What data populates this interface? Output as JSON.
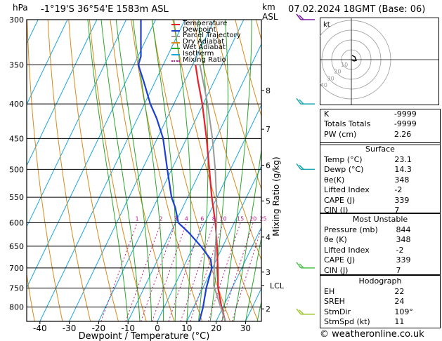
{
  "header": {
    "hpa_label": "hPa",
    "location": "-1°19'S  36°54'E  1583m  ASL",
    "km_label": "km",
    "asl_label": "ASL",
    "datetime": "07.02.2024  18GMT  (Base: 06)"
  },
  "legend": [
    {
      "label": "Temperature",
      "color": "#e8202a"
    },
    {
      "label": "Dewpoint",
      "color": "#1e3fcf"
    },
    {
      "label": "Parcel Trajectory",
      "color": "#9a9a9a"
    },
    {
      "label": "Dry Adiabat",
      "color": "#d98a1a"
    },
    {
      "label": "Wet Adiabat",
      "color": "#2aa82a"
    },
    {
      "label": "Isotherm",
      "color": "#1aa6e0"
    },
    {
      "label": "Mixing Ratio",
      "color": "#c0188a"
    }
  ],
  "chart_data": {
    "type": "line",
    "title": "",
    "xlabel": "Dewpoint / Temperature (°C)",
    "ylabel": "hPa",
    "y2label": "Mixing Ratio (g/kg)",
    "xlim": [
      -45,
      35
    ],
    "ylim": [
      840,
      300
    ],
    "pressure_ticks": [
      300,
      350,
      400,
      450,
      500,
      550,
      600,
      650,
      700,
      750,
      800
    ],
    "temp_ticks": [
      -40,
      -30,
      -20,
      -10,
      0,
      10,
      20,
      30
    ],
    "km_ticks": [
      {
        "km": "2",
        "p": 805
      },
      {
        "km": "3",
        "p": 710
      },
      {
        "km": "4",
        "p": 630
      },
      {
        "km": "5",
        "p": 557
      },
      {
        "km": "6",
        "p": 493
      },
      {
        "km": "7",
        "p": 436
      },
      {
        "km": "8",
        "p": 382
      }
    ],
    "lcl": {
      "label": "LCL",
      "p": 743
    },
    "mixing_ratio_labels": [
      "1",
      "2",
      "3",
      "4",
      "6",
      "8",
      "10",
      "15",
      "20",
      "25"
    ],
    "mixing_ratio_values": [
      1,
      2,
      3,
      4,
      6,
      8,
      10,
      15,
      20,
      25
    ],
    "series": [
      {
        "name": "Temperature",
        "color": "#e8202a",
        "points": [
          [
            840,
            23.1
          ],
          [
            800,
            19.5
          ],
          [
            750,
            15.2
          ],
          [
            700,
            11.8
          ],
          [
            650,
            8.0
          ],
          [
            600,
            3.6
          ],
          [
            550,
            -1.8
          ],
          [
            500,
            -7.2
          ],
          [
            450,
            -13.2
          ],
          [
            400,
            -20.3
          ],
          [
            370,
            -25.5
          ],
          [
            350,
            -29.0
          ]
        ]
      },
      {
        "name": "Dewpoint",
        "color": "#1e3fcf",
        "points": [
          [
            840,
            14.3
          ],
          [
            800,
            13.2
          ],
          [
            750,
            11.2
          ],
          [
            700,
            9.8
          ],
          [
            680,
            8.0
          ],
          [
            650,
            2.5
          ],
          [
            620,
            -4.0
          ],
          [
            600,
            -9.0
          ],
          [
            570,
            -12.5
          ],
          [
            550,
            -15.5
          ],
          [
            500,
            -21.5
          ],
          [
            450,
            -28.0
          ],
          [
            420,
            -33.5
          ],
          [
            400,
            -38.0
          ],
          [
            370,
            -44.0
          ],
          [
            350,
            -48.5
          ],
          [
            340,
            -49.0
          ],
          [
            300,
            -55.0
          ]
        ]
      },
      {
        "name": "Parcel Trajectory",
        "color": "#9a9a9a",
        "points": [
          [
            840,
            23.1
          ],
          [
            743,
            13.3
          ],
          [
            700,
            10.6
          ],
          [
            650,
            7.5
          ],
          [
            600,
            4.0
          ],
          [
            550,
            -0.2
          ],
          [
            500,
            -5.2
          ],
          [
            450,
            -11.2
          ],
          [
            400,
            -18.5
          ],
          [
            350,
            -27.5
          ]
        ]
      }
    ]
  },
  "wind_barbs": [
    {
      "p": 300,
      "color": "#7a1aa0"
    },
    {
      "p": 400,
      "color": "#1aa6b0"
    },
    {
      "p": 500,
      "color": "#1aa6b0"
    },
    {
      "p": 700,
      "color": "#4cc24c"
    },
    {
      "p": 820,
      "color": "#a0c830"
    }
  ],
  "hodograph": {
    "label": "kt",
    "ring_labels": [
      "10",
      "20",
      "30",
      "40"
    ],
    "trace": [
      [
        0,
        0
      ],
      [
        4,
        -2
      ],
      [
        7,
        -1
      ],
      [
        5,
        4
      ],
      [
        1,
        6
      ]
    ]
  },
  "indices": [
    {
      "key": "K",
      "value": "-9999"
    },
    {
      "key": "Totals Totals",
      "value": "-9999"
    },
    {
      "key": "PW (cm)",
      "value": "2.26"
    }
  ],
  "surface": {
    "title": "Surface",
    "rows": [
      {
        "key": "Temp (°C)",
        "value": "23.1"
      },
      {
        "key": "Dewp (°C)",
        "value": "14.3"
      },
      {
        "key": "θe(K)",
        "value": "348"
      },
      {
        "key": "Lifted Index",
        "value": "-2"
      },
      {
        "key": "CAPE (J)",
        "value": "339"
      },
      {
        "key": "CIN (J)",
        "value": "7"
      }
    ]
  },
  "most_unstable": {
    "title": "Most Unstable",
    "rows": [
      {
        "key": "Pressure (mb)",
        "value": "844"
      },
      {
        "key": "θe (K)",
        "value": "348"
      },
      {
        "key": "Lifted Index",
        "value": "-2"
      },
      {
        "key": "CAPE (J)",
        "value": "339"
      },
      {
        "key": "CIN (J)",
        "value": "7"
      }
    ]
  },
  "hodograph_table": {
    "title": "Hodograph",
    "rows": [
      {
        "key": "EH",
        "value": "22"
      },
      {
        "key": "SREH",
        "value": "24"
      },
      {
        "key": "StmDir",
        "value": "109°"
      },
      {
        "key": "StmSpd (kt)",
        "value": "11"
      }
    ]
  },
  "credit": "© weatheronline.co.uk"
}
